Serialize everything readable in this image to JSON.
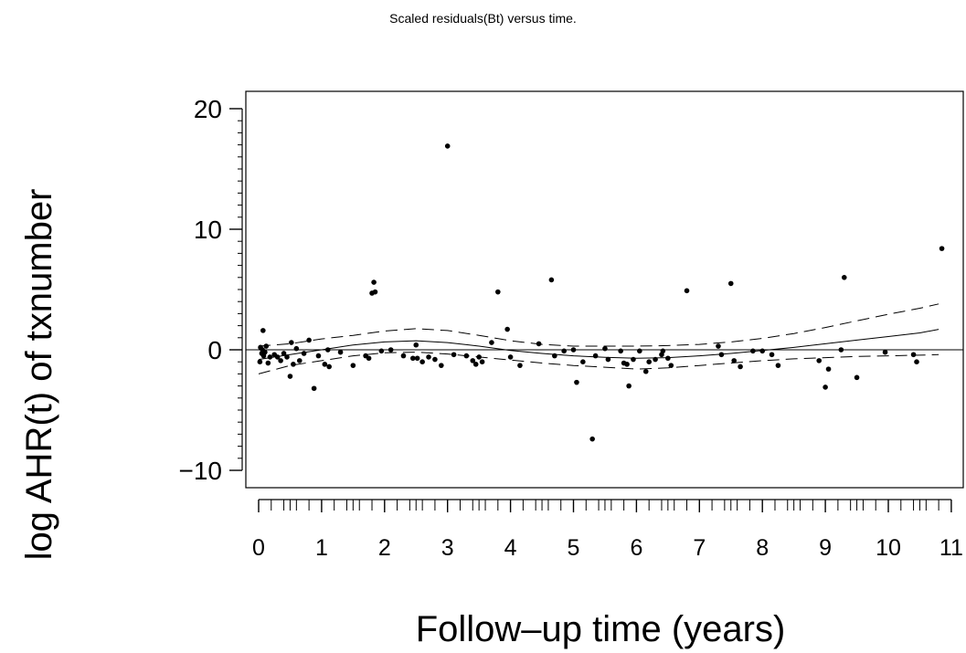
{
  "chart_data": {
    "type": "scatter",
    "title": "Scaled residuals(Bt) versus time.",
    "xlabel": "Follow–up time (years)",
    "ylabel": "log AHR(t) of txnumber",
    "xlim": [
      -0.2,
      11.2
    ],
    "ylim": [
      -11.5,
      21.5
    ],
    "x_ticks": [
      0,
      1,
      2,
      3,
      4,
      5,
      6,
      7,
      8,
      9,
      10,
      11
    ],
    "x_tick_labels": [
      "0",
      "1",
      "2",
      "3",
      "4",
      "5",
      "6",
      "7",
      "8",
      "9",
      "10",
      "11"
    ],
    "y_ticks": [
      -10,
      0,
      10,
      20
    ],
    "y_tick_labels": [
      "−10",
      "0",
      "10",
      "20"
    ],
    "reference_line_y": 0,
    "grid": false,
    "legend": "none",
    "series": [
      {
        "kind": "points",
        "points": [
          [
            0.02,
            -1.0
          ],
          [
            0.03,
            0.2
          ],
          [
            0.05,
            -0.3
          ],
          [
            0.06,
            0.0
          ],
          [
            0.07,
            1.6
          ],
          [
            0.08,
            -0.5
          ],
          [
            0.1,
            -0.2
          ],
          [
            0.12,
            0.3
          ],
          [
            0.15,
            -1.1
          ],
          [
            0.18,
            -0.6
          ],
          [
            0.25,
            -0.4
          ],
          [
            0.3,
            -0.6
          ],
          [
            0.35,
            -0.9
          ],
          [
            0.4,
            -0.3
          ],
          [
            0.45,
            -0.6
          ],
          [
            0.5,
            -2.2
          ],
          [
            0.52,
            0.6
          ],
          [
            0.55,
            -1.2
          ],
          [
            0.6,
            0.1
          ],
          [
            0.65,
            -0.9
          ],
          [
            0.72,
            -0.3
          ],
          [
            0.8,
            0.8
          ],
          [
            0.88,
            -3.2
          ],
          [
            0.95,
            -0.5
          ],
          [
            1.05,
            -1.2
          ],
          [
            1.1,
            0.0
          ],
          [
            1.12,
            -1.4
          ],
          [
            1.3,
            -0.2
          ],
          [
            1.5,
            -1.3
          ],
          [
            1.7,
            -0.5
          ],
          [
            1.75,
            -0.7
          ],
          [
            1.8,
            4.7
          ],
          [
            1.83,
            5.6
          ],
          [
            1.85,
            4.8
          ],
          [
            1.95,
            -0.1
          ],
          [
            2.1,
            0.0
          ],
          [
            2.3,
            -0.5
          ],
          [
            2.45,
            -0.7
          ],
          [
            2.5,
            0.4
          ],
          [
            2.52,
            -0.7
          ],
          [
            2.6,
            -1.0
          ],
          [
            2.7,
            -0.6
          ],
          [
            2.8,
            -0.8
          ],
          [
            2.9,
            -1.3
          ],
          [
            3.0,
            16.9
          ],
          [
            3.1,
            -0.4
          ],
          [
            3.3,
            -0.5
          ],
          [
            3.4,
            -0.9
          ],
          [
            3.45,
            -1.2
          ],
          [
            3.5,
            -0.6
          ],
          [
            3.55,
            -1.0
          ],
          [
            3.7,
            0.6
          ],
          [
            3.8,
            4.8
          ],
          [
            3.95,
            1.7
          ],
          [
            4.0,
            -0.6
          ],
          [
            4.15,
            -1.3
          ],
          [
            4.45,
            0.5
          ],
          [
            4.65,
            5.8
          ],
          [
            4.7,
            -0.5
          ],
          [
            4.85,
            -0.1
          ],
          [
            5.0,
            0.0
          ],
          [
            5.05,
            -2.7
          ],
          [
            5.15,
            -1.0
          ],
          [
            5.35,
            -0.5
          ],
          [
            5.3,
            -7.4
          ],
          [
            5.5,
            0.1
          ],
          [
            5.55,
            -0.8
          ],
          [
            5.75,
            -0.1
          ],
          [
            5.8,
            -1.1
          ],
          [
            5.85,
            -1.2
          ],
          [
            5.88,
            -3.0
          ],
          [
            5.95,
            -0.8
          ],
          [
            6.05,
            -0.1
          ],
          [
            6.15,
            -1.8
          ],
          [
            6.2,
            -1.0
          ],
          [
            6.3,
            -0.8
          ],
          [
            6.4,
            -0.4
          ],
          [
            6.42,
            -0.1
          ],
          [
            6.5,
            -0.7
          ],
          [
            6.55,
            -1.3
          ],
          [
            6.8,
            4.9
          ],
          [
            7.3,
            0.3
          ],
          [
            7.35,
            -0.4
          ],
          [
            7.5,
            5.5
          ],
          [
            7.55,
            -0.9
          ],
          [
            7.65,
            -1.4
          ],
          [
            7.85,
            -0.1
          ],
          [
            8.0,
            -0.1
          ],
          [
            8.15,
            -0.4
          ],
          [
            8.25,
            -1.3
          ],
          [
            8.9,
            -0.9
          ],
          [
            9.0,
            -3.1
          ],
          [
            9.05,
            -1.6
          ],
          [
            9.25,
            0.0
          ],
          [
            9.3,
            6.0
          ],
          [
            9.5,
            -2.3
          ],
          [
            9.95,
            -0.2
          ],
          [
            10.4,
            -0.4
          ],
          [
            10.45,
            -1.0
          ],
          [
            10.85,
            8.4
          ]
        ]
      },
      {
        "kind": "line",
        "dash": "solid",
        "x": [
          0,
          0.5,
          1,
          1.5,
          2,
          2.5,
          3,
          3.5,
          4,
          4.5,
          5,
          5.5,
          6,
          6.5,
          7,
          7.5,
          8,
          8.5,
          9,
          9.5,
          10,
          10.5,
          10.8
        ],
        "y": [
          -0.8,
          -0.4,
          0.0,
          0.4,
          0.65,
          0.75,
          0.6,
          0.3,
          -0.05,
          -0.3,
          -0.5,
          -0.62,
          -0.7,
          -0.65,
          -0.5,
          -0.3,
          -0.05,
          0.2,
          0.5,
          0.8,
          1.1,
          1.4,
          1.7
        ]
      },
      {
        "kind": "line",
        "dash": "dashed",
        "x": [
          0,
          0.5,
          1,
          1.5,
          2,
          2.5,
          3,
          3.5,
          4,
          4.5,
          5,
          5.5,
          6,
          6.5,
          7,
          7.5,
          8,
          8.5,
          9,
          9.5,
          10,
          10.5,
          10.8
        ],
        "y": [
          0.3,
          0.5,
          0.9,
          1.2,
          1.55,
          1.75,
          1.6,
          1.2,
          0.75,
          0.45,
          0.3,
          0.3,
          0.3,
          0.35,
          0.45,
          0.65,
          0.95,
          1.35,
          1.85,
          2.4,
          2.95,
          3.45,
          3.8
        ]
      },
      {
        "kind": "line",
        "dash": "dashed",
        "x": [
          0,
          0.5,
          1,
          1.5,
          2,
          2.5,
          3,
          3.5,
          4,
          4.5,
          5,
          5.5,
          6,
          6.5,
          7,
          7.5,
          8,
          8.5,
          9,
          9.5,
          10,
          10.5,
          10.8
        ],
        "y": [
          -2.0,
          -1.3,
          -0.9,
          -0.5,
          -0.25,
          -0.2,
          -0.35,
          -0.6,
          -0.85,
          -1.1,
          -1.3,
          -1.45,
          -1.6,
          -1.5,
          -1.3,
          -1.1,
          -0.9,
          -0.75,
          -0.65,
          -0.55,
          -0.5,
          -0.45,
          -0.4
        ]
      }
    ]
  }
}
